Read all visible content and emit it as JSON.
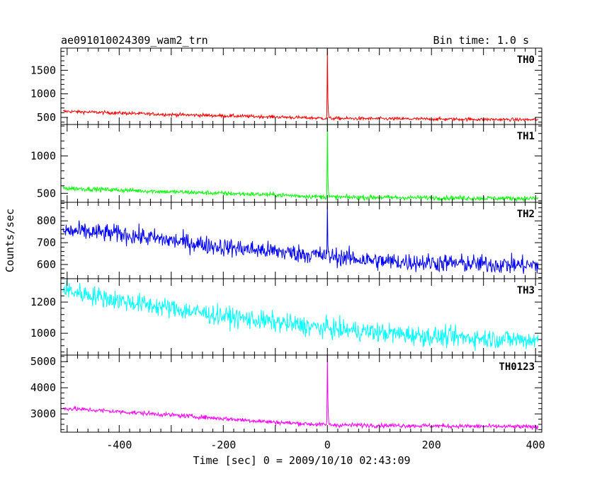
{
  "header": {
    "title": "ae091010024309_wam2_trn",
    "bin_time": "Bin time: 1.0 s"
  },
  "chart_data": {
    "type": "line",
    "xlabel": "Time [sec] 0 = 2009/10/10 02:43:09",
    "ylabel": "Counts/sec",
    "xlim": [
      -512,
      412
    ],
    "x_ticks": [
      -400,
      -200,
      0,
      200,
      400
    ],
    "grid": false,
    "panels": [
      {
        "name": "TH0",
        "color": "#ff0000",
        "ylim": [
          350,
          1970
        ],
        "y_ticks": [
          500,
          1000,
          1500
        ],
        "baseline": [
          [
            -510,
            630
          ],
          [
            -300,
            560
          ],
          [
            -100,
            510
          ],
          [
            0,
            480
          ],
          [
            410,
            450
          ]
        ],
        "noise": 25,
        "peak": 1970,
        "post_peak": 900
      },
      {
        "name": "TH1",
        "color": "#00ff00",
        "ylim": [
          380,
          1420
        ],
        "y_ticks": [
          500,
          1000
        ],
        "baseline": [
          [
            -510,
            570
          ],
          [
            -300,
            520
          ],
          [
            -100,
            480
          ],
          [
            0,
            450
          ],
          [
            410,
            430
          ]
        ],
        "noise": 22,
        "peak": 1420,
        "post_peak": 750
      },
      {
        "name": "TH2",
        "color": "#0000ff",
        "ylim": [
          535,
          885
        ],
        "y_ticks": [
          600,
          700,
          800
        ],
        "baseline": [
          [
            -510,
            755
          ],
          [
            -400,
            740
          ],
          [
            -200,
            680
          ],
          [
            0,
            640
          ],
          [
            100,
            615
          ],
          [
            410,
            595
          ]
        ],
        "noise": 30,
        "peak": 880,
        "post_peak": 690
      },
      {
        "name": "TH3",
        "color": "#00ffff",
        "ylim": [
          860,
          1350
        ],
        "y_ticks": [
          1000,
          1200
        ],
        "baseline": [
          [
            -510,
            1280
          ],
          [
            -400,
            1210
          ],
          [
            -200,
            1110
          ],
          [
            0,
            1030
          ],
          [
            200,
            980
          ],
          [
            410,
            955
          ]
        ],
        "noise": 45,
        "peak": 1090,
        "post_peak": 1050
      },
      {
        "name": "TH0123",
        "color": "#ff00ff",
        "ylim": [
          2300,
          5250
        ],
        "y_ticks": [
          3000,
          4000,
          5000
        ],
        "baseline": [
          [
            -510,
            3220
          ],
          [
            -300,
            2960
          ],
          [
            -100,
            2680
          ],
          [
            0,
            2580
          ],
          [
            410,
            2500
          ]
        ],
        "noise": 60,
        "peak": 5250,
        "post_peak": 3600
      }
    ]
  }
}
